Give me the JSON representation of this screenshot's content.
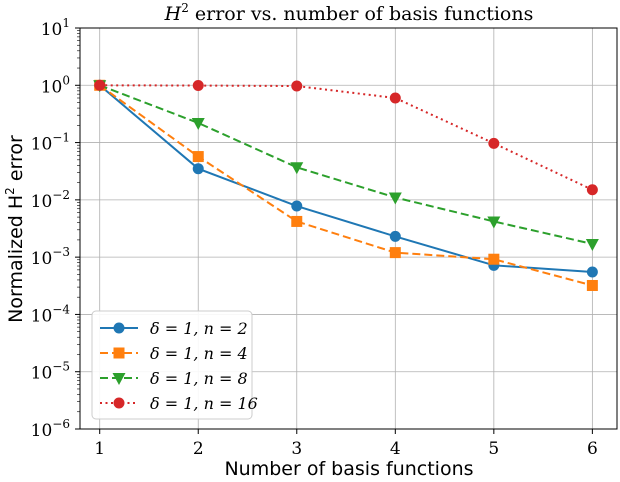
{
  "chart_data": {
    "type": "line",
    "title_main": "H",
    "title_sup": "2",
    "title_rest": " error vs. number of basis functions",
    "xlabel": "Number of basis functions",
    "ylabel_main": "Normalized H",
    "ylabel_sup": "2",
    "ylabel_rest": " error",
    "x": [
      1,
      2,
      3,
      4,
      5,
      6
    ],
    "xticks": [
      "1",
      "2",
      "3",
      "4",
      "5",
      "6"
    ],
    "xlim": [
      0.8,
      6.25
    ],
    "yscale": "log",
    "ylim": [
      1e-06,
      10
    ],
    "yticks": [
      {
        "base": "10",
        "exp": "1"
      },
      {
        "base": "10",
        "exp": "0"
      },
      {
        "base": "10",
        "exp": "−1"
      },
      {
        "base": "10",
        "exp": "−2"
      },
      {
        "base": "10",
        "exp": "−3"
      },
      {
        "base": "10",
        "exp": "−4"
      },
      {
        "base": "10",
        "exp": "−5"
      },
      {
        "base": "10",
        "exp": "−6"
      }
    ],
    "grid": true,
    "legend_position": "lower-left",
    "series": [
      {
        "name": "δ = 1, n = 2",
        "color": "#1f77b4",
        "marker": "circle",
        "linestyle": "solid",
        "values": [
          1.0,
          0.035,
          0.0078,
          0.0023,
          0.00072,
          0.00055
        ]
      },
      {
        "name": "δ = 1, n = 4",
        "color": "#ff7f0e",
        "marker": "square",
        "linestyle": "dashed",
        "values": [
          1.0,
          0.057,
          0.0042,
          0.0012,
          0.00092,
          0.00032
        ]
      },
      {
        "name": "δ = 1, n = 8",
        "color": "#2ca02c",
        "marker": "triangle-down",
        "linestyle": "dashed",
        "values": [
          1.0,
          0.22,
          0.037,
          0.011,
          0.0042,
          0.0017
        ]
      },
      {
        "name": "δ = 1, n = 16",
        "color": "#d62728",
        "marker": "circle",
        "linestyle": "dotted",
        "values": [
          1.0,
          0.99,
          0.97,
          0.6,
          0.097,
          0.015
        ]
      }
    ]
  }
}
